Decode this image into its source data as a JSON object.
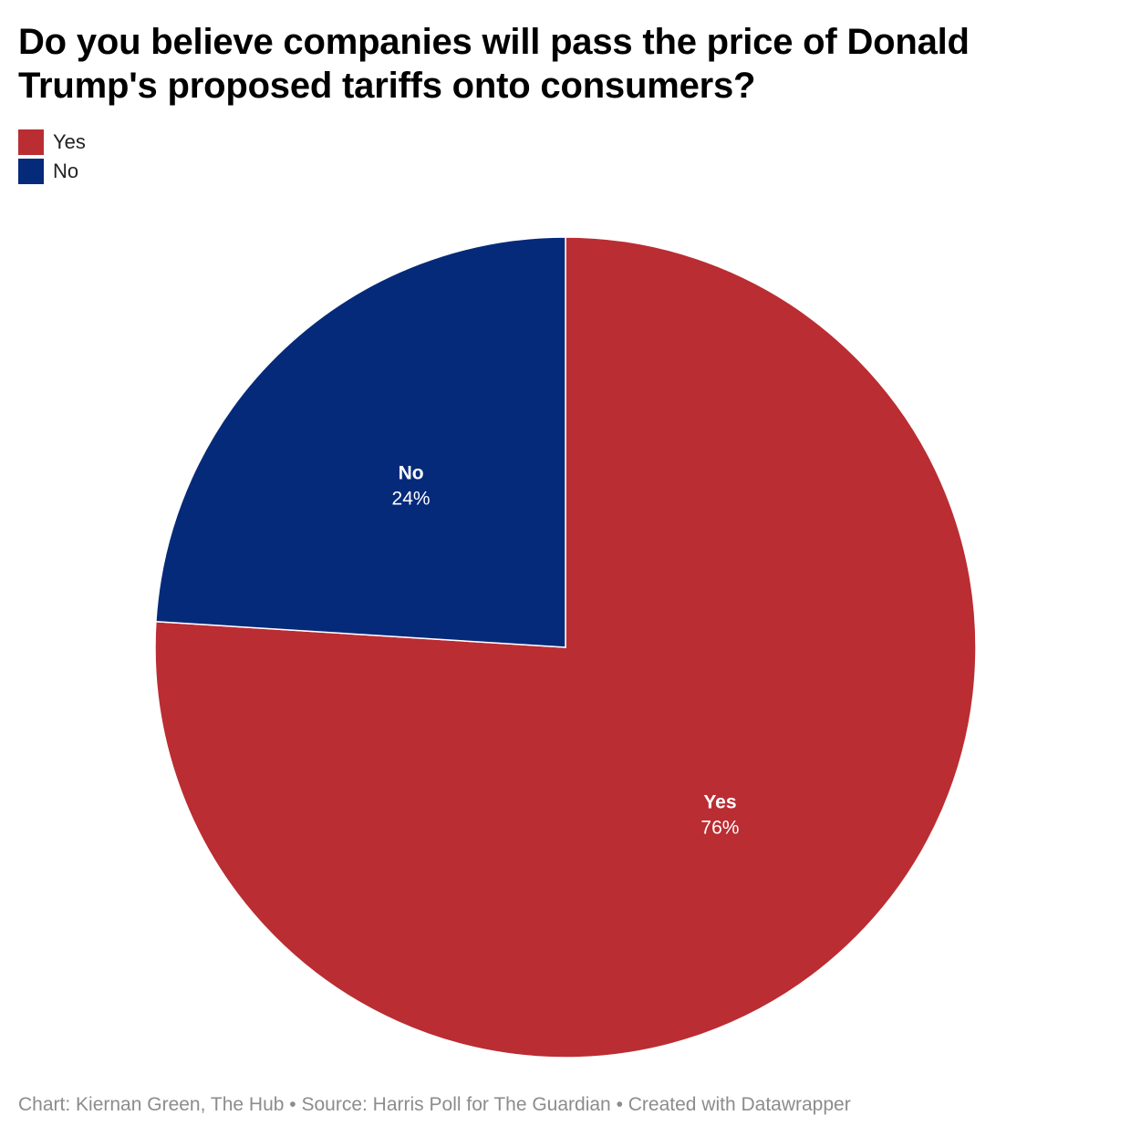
{
  "title": "Do you believe companies will pass the price of Donald Trump's proposed tariffs onto consumers?",
  "legend": [
    {
      "label": "Yes",
      "color": "#ba2d32"
    },
    {
      "label": "No",
      "color": "#062a7a"
    }
  ],
  "footer": {
    "credit": "Chart: Kiernan Green, The Hub",
    "separator": " • ",
    "source": "Source: Harris Poll for The Guardian",
    "tool": "Created with Datawrapper"
  },
  "chart_data": {
    "type": "pie",
    "title": "Do you believe companies will pass the price of Donald Trump's proposed tariffs onto consumers?",
    "start": "12 o'clock, clockwise",
    "slices": [
      {
        "label": "Yes",
        "value": 76,
        "display": "76%",
        "color": "#ba2d32"
      },
      {
        "label": "No",
        "value": 24,
        "display": "24%",
        "color": "#062a7a"
      }
    ],
    "legend_position": "top-left"
  }
}
